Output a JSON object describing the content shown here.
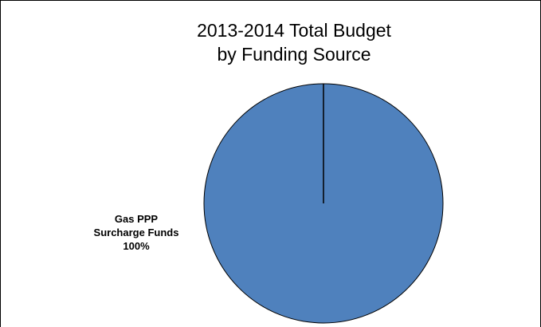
{
  "chart_data": {
    "type": "pie",
    "title": "2013-2014 Total Budget",
    "subtitle": "by Funding Source",
    "categories": [
      "Gas PPP Surcharge Funds"
    ],
    "values": [
      100
    ],
    "labels": [
      [
        "Gas PPP",
        "Surcharge Funds",
        "100%"
      ]
    ],
    "colors": [
      "#4F81BD"
    ],
    "legend": "none"
  }
}
